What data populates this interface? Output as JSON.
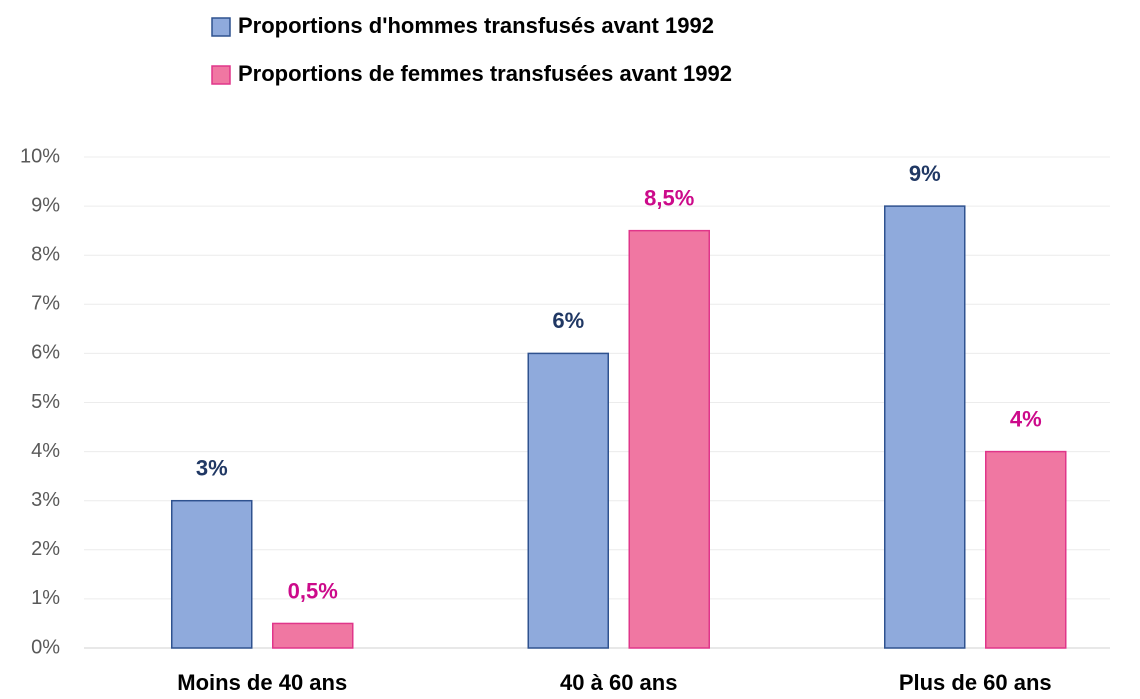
{
  "chart_data": {
    "type": "bar",
    "categories": [
      "Moins de 40 ans",
      "40 à 60 ans",
      "Plus de 60 ans"
    ],
    "series": [
      {
        "name": "Proportions d'hommes transfusés avant 1992",
        "color": "#8faadc",
        "stroke": "#2f528f",
        "label_color": "#203864",
        "values": [
          3,
          6,
          9
        ],
        "value_labels": [
          "3%",
          "6%",
          "9%"
        ]
      },
      {
        "name": "Proportions de femmes transfusées avant 1992",
        "color": "#f077a2",
        "stroke": "#e0368a",
        "label_color": "#cc0a8a",
        "values": [
          0.5,
          8.5,
          4
        ],
        "value_labels": [
          "0,5%",
          "8,5%",
          "4%"
        ]
      }
    ],
    "ylim": [
      0,
      10
    ],
    "yticks": [
      {
        "value": 0,
        "label": "0%"
      },
      {
        "value": 1,
        "label": "1%"
      },
      {
        "value": 2,
        "label": "2%"
      },
      {
        "value": 3,
        "label": "3%"
      },
      {
        "value": 4,
        "label": "4%"
      },
      {
        "value": 5,
        "label": "5%"
      },
      {
        "value": 6,
        "label": "6%"
      },
      {
        "value": 7,
        "label": "7%"
      },
      {
        "value": 8,
        "label": "8%"
      },
      {
        "value": 9,
        "label": "9%"
      },
      {
        "value": 10,
        "label": "10%"
      }
    ],
    "grid": true,
    "legend": "top"
  }
}
